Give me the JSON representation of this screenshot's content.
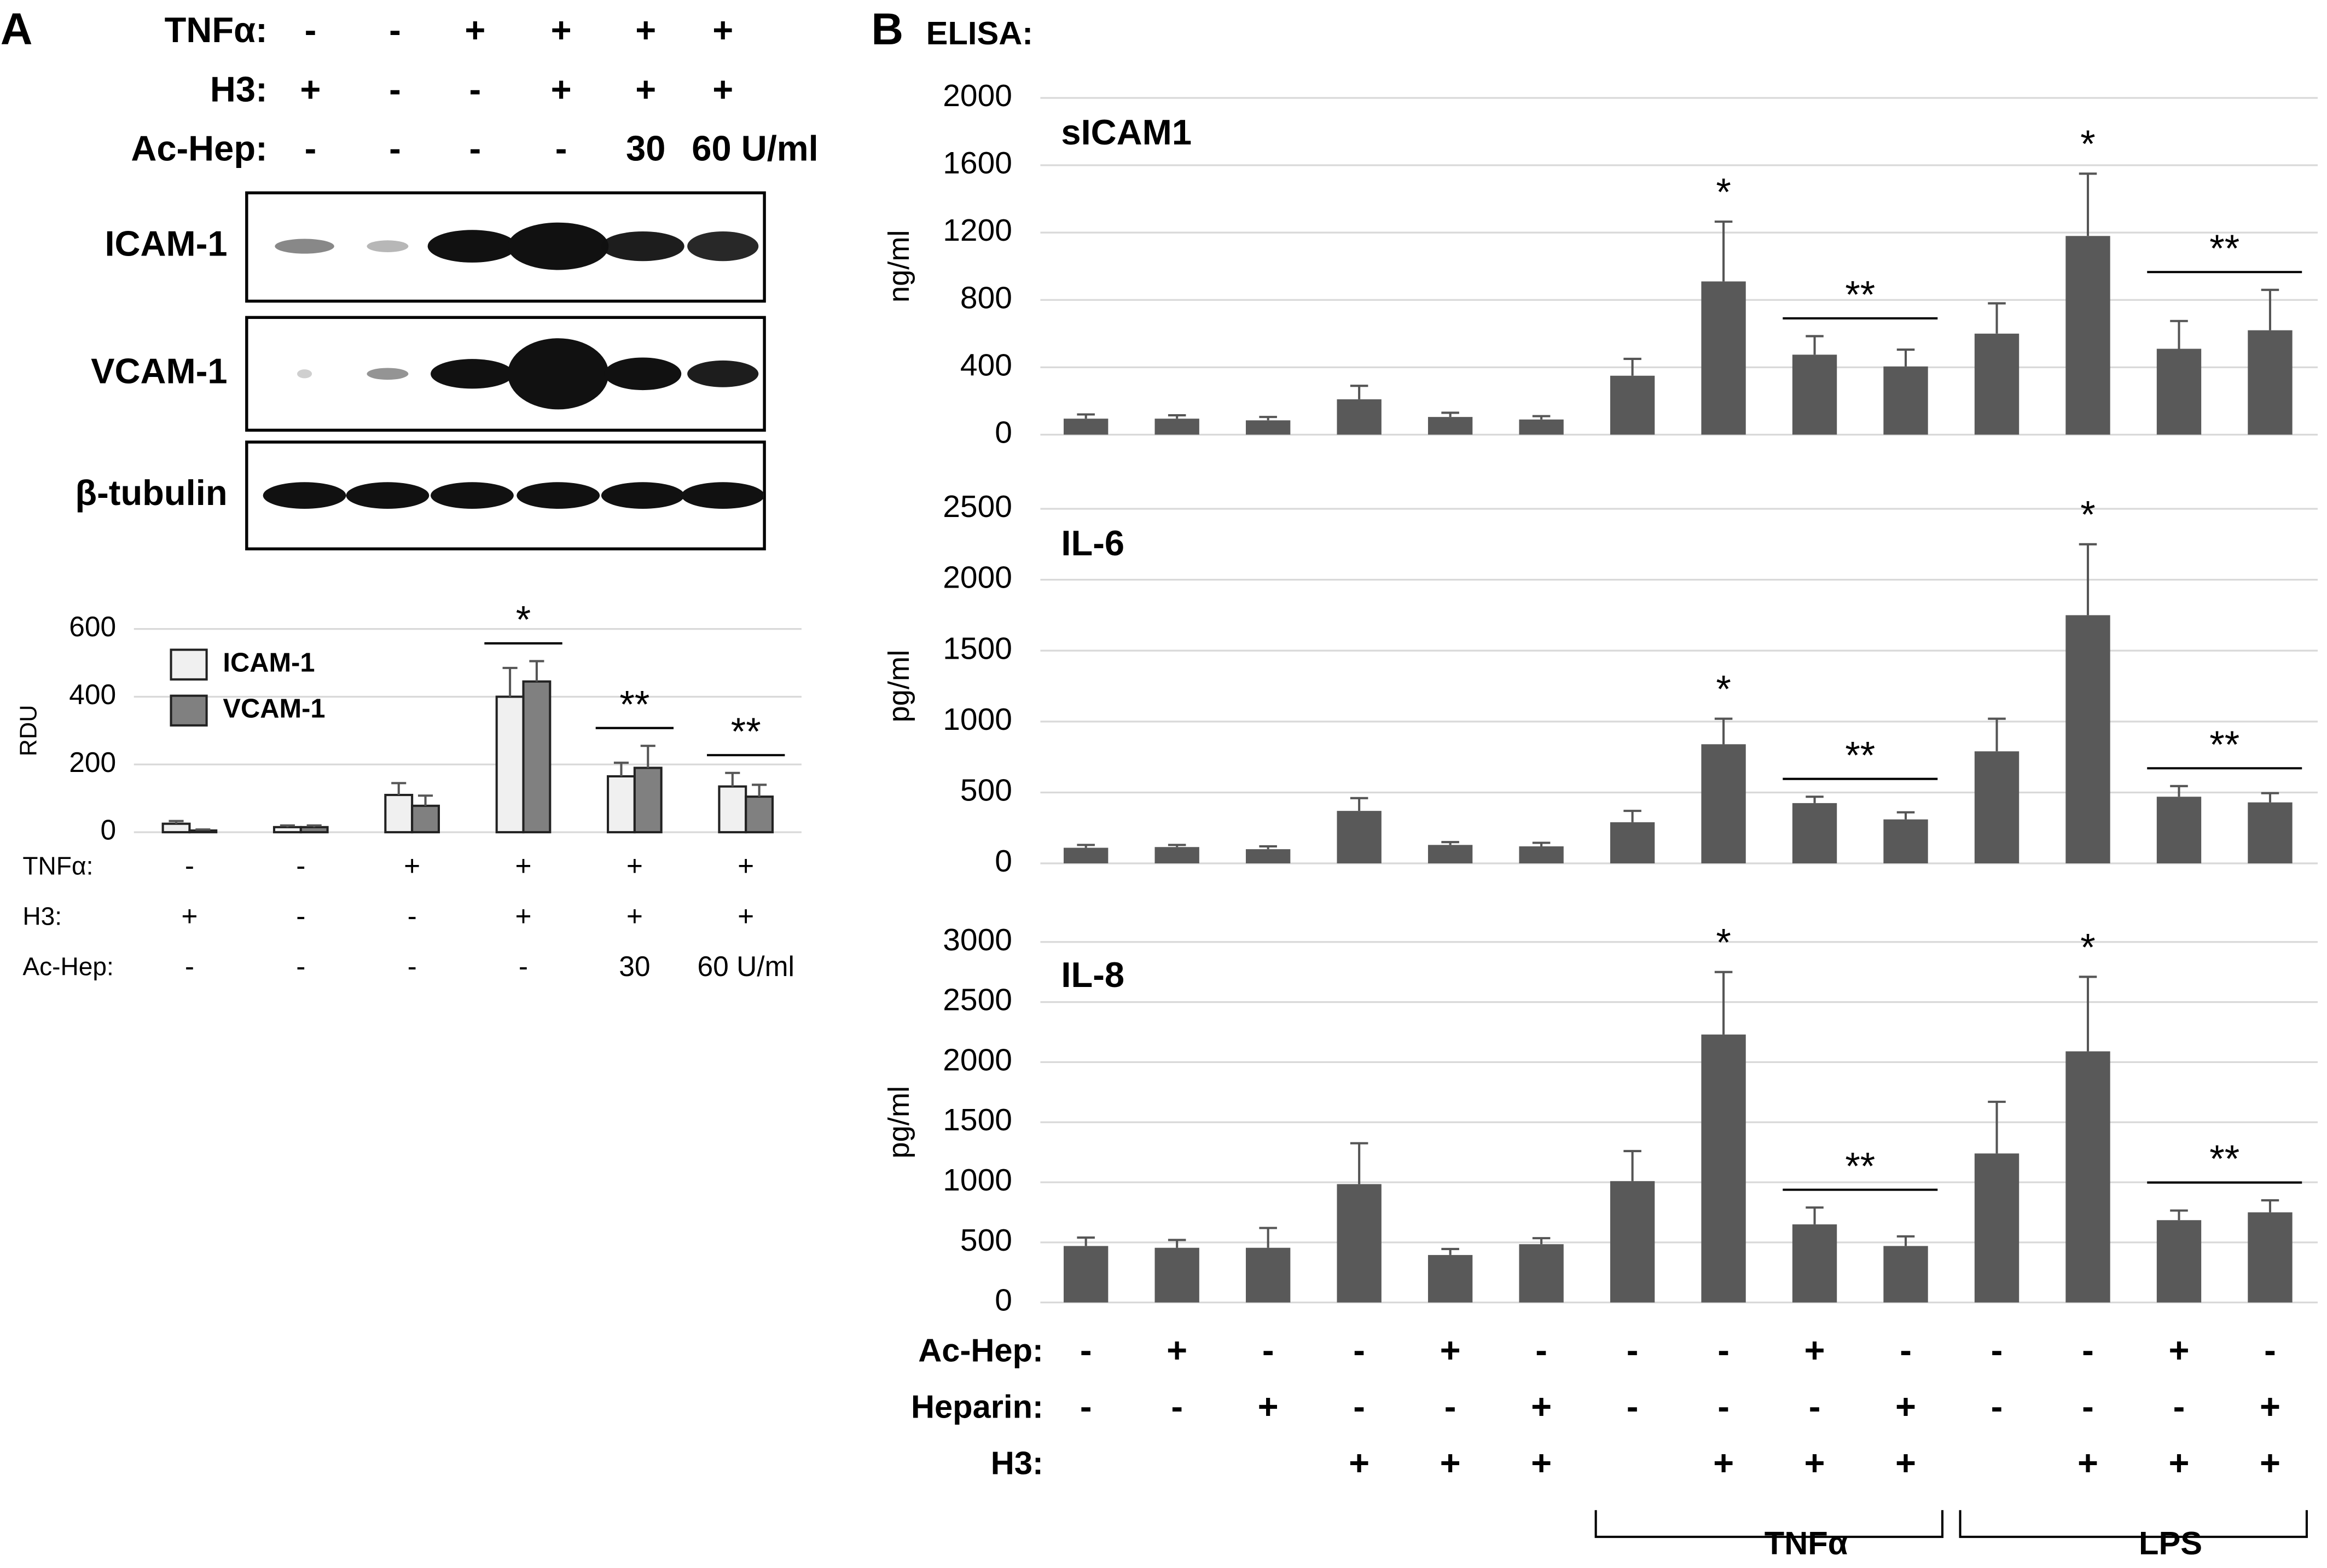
{
  "panel_a": {
    "label": "A",
    "conditions": [
      {
        "label": "TNFα:",
        "values": [
          "-",
          "-",
          "+",
          "+",
          "+",
          "+"
        ]
      },
      {
        "label": "H3:",
        "values": [
          "+",
          "-",
          "-",
          "+",
          "+",
          "+"
        ]
      },
      {
        "label": "Ac-Hep:",
        "values": [
          "-",
          "-",
          "-",
          "-",
          "30",
          "60 U/ml"
        ]
      }
    ],
    "blot_labels": [
      "ICAM-1",
      "VCAM-1",
      "β-tubulin"
    ]
  },
  "panel_b": {
    "label": "B",
    "title": "ELISA:",
    "conditions": [
      {
        "label": "Ac-Hep:",
        "values": [
          "-",
          "+",
          "-",
          "-",
          "+",
          "-",
          "-",
          "-",
          "+",
          "-",
          "-",
          "-",
          "+",
          "-"
        ]
      },
      {
        "label": "Heparin:",
        "values": [
          "-",
          "-",
          "+",
          "-",
          "-",
          "+",
          "-",
          "-",
          "-",
          "+",
          "-",
          "-",
          "-",
          "+"
        ]
      },
      {
        "label": "H3:",
        "values": [
          null,
          null,
          null,
          "+",
          "+",
          "+",
          null,
          "+",
          "+",
          "+",
          null,
          "+",
          "+",
          "+"
        ]
      }
    ],
    "groups": [
      {
        "label": "TNFα",
        "categories": [
          6,
          9
        ]
      },
      {
        "label": "LPS",
        "categories": [
          10,
          13
        ]
      }
    ]
  },
  "chart_data": [
    {
      "type": "bar",
      "ylabel": "RDU",
      "categories": [
        null,
        null,
        null,
        null,
        null,
        null
      ],
      "series": [
        {
          "name": "ICAM-1",
          "color": "#f0f0f0",
          "values": [
            25,
            15,
            110,
            400,
            165,
            135
          ],
          "errors": [
            8,
            5,
            35,
            85,
            40,
            40
          ]
        },
        {
          "name": "VCAM-1",
          "color": "#808080",
          "values": [
            5,
            15,
            78,
            445,
            190,
            105
          ],
          "errors": [
            3,
            5,
            30,
            60,
            65,
            35
          ]
        }
      ],
      "ylim": [
        0,
        600
      ],
      "yticks": [
        0,
        200,
        400,
        600
      ],
      "grid": true,
      "legend": "upper left",
      "annotations": [
        {
          "text": "*",
          "categories": [
            3
          ],
          "bracket": true
        },
        {
          "text": "**",
          "categories": [
            4
          ],
          "bracket": true
        },
        {
          "text": "**",
          "categories": [
            5
          ],
          "bracket": true
        }
      ],
      "conditions": [
        {
          "label": "TNFα:",
          "values": [
            "-",
            "-",
            "+",
            "+",
            "+",
            "+"
          ]
        },
        {
          "label": "H3:",
          "values": [
            "+",
            "-",
            "-",
            "+",
            "+",
            "+"
          ]
        },
        {
          "label": "Ac-Hep:",
          "values": [
            "-",
            "-",
            "-",
            "-",
            "30",
            "60 U/ml"
          ]
        }
      ]
    },
    {
      "type": "bar",
      "title": "sICAM1",
      "ylabel": "ng/ml",
      "categories": [
        null,
        null,
        null,
        null,
        null,
        null,
        null,
        null,
        null,
        null,
        null,
        null,
        null,
        null
      ],
      "series": [
        {
          "color": "#595959",
          "values": [
            95,
            95,
            85,
            210,
            105,
            90,
            350,
            910,
            475,
            405,
            600,
            1180,
            510,
            620
          ],
          "errors": [
            25,
            20,
            20,
            80,
            25,
            20,
            100,
            355,
            110,
            100,
            180,
            370,
            165,
            240
          ]
        }
      ],
      "ylim": [
        0,
        2000
      ],
      "yticks": [
        0,
        400,
        800,
        1200,
        1600,
        2000
      ],
      "grid": true,
      "annotations": [
        {
          "text": "*",
          "categories": [
            7
          ],
          "bracket": false
        },
        {
          "text": "**",
          "categories": [
            8,
            9
          ],
          "bracket": true
        },
        {
          "text": "*",
          "categories": [
            11
          ],
          "bracket": false
        },
        {
          "text": "**",
          "categories": [
            12,
            13
          ],
          "bracket": true
        }
      ]
    },
    {
      "type": "bar",
      "title": "IL-6",
      "ylabel": "pg/ml",
      "categories": [
        null,
        null,
        null,
        null,
        null,
        null,
        null,
        null,
        null,
        null,
        null,
        null,
        null,
        null
      ],
      "series": [
        {
          "color": "#595959",
          "values": [
            110,
            115,
            100,
            370,
            130,
            120,
            290,
            840,
            425,
            310,
            790,
            1750,
            470,
            430
          ],
          "errors": [
            20,
            15,
            20,
            90,
            20,
            25,
            80,
            180,
            45,
            50,
            230,
            500,
            75,
            65
          ]
        }
      ],
      "ylim": [
        0,
        2500
      ],
      "yticks": [
        0,
        500,
        1000,
        1500,
        2000,
        2500
      ],
      "grid": true,
      "annotations": [
        {
          "text": "*",
          "categories": [
            7
          ],
          "bracket": false
        },
        {
          "text": "**",
          "categories": [
            8,
            9
          ],
          "bracket": true
        },
        {
          "text": "*",
          "categories": [
            11
          ],
          "bracket": false
        },
        {
          "text": "**",
          "categories": [
            12,
            13
          ],
          "bracket": true
        }
      ]
    },
    {
      "type": "bar",
      "title": "IL-8",
      "ylabel": "pg/ml",
      "categories": [
        null,
        null,
        null,
        null,
        null,
        null,
        null,
        null,
        null,
        null,
        null,
        null,
        null,
        null
      ],
      "series": [
        {
          "color": "#595959",
          "values": [
            470,
            455,
            455,
            985,
            395,
            485,
            1010,
            2230,
            650,
            470,
            1240,
            2090,
            685,
            750
          ],
          "errors": [
            70,
            65,
            165,
            340,
            50,
            50,
            250,
            520,
            140,
            80,
            430,
            620,
            80,
            100
          ]
        }
      ],
      "ylim": [
        0,
        3000
      ],
      "yticks": [
        0,
        500,
        1000,
        1500,
        2000,
        2500,
        3000
      ],
      "grid": true,
      "annotations": [
        {
          "text": "*",
          "categories": [
            7
          ],
          "bracket": false
        },
        {
          "text": "**",
          "categories": [
            8,
            9
          ],
          "bracket": true
        },
        {
          "text": "*",
          "categories": [
            11
          ],
          "bracket": false
        },
        {
          "text": "**",
          "categories": [
            12,
            13
          ],
          "bracket": true
        }
      ]
    }
  ]
}
